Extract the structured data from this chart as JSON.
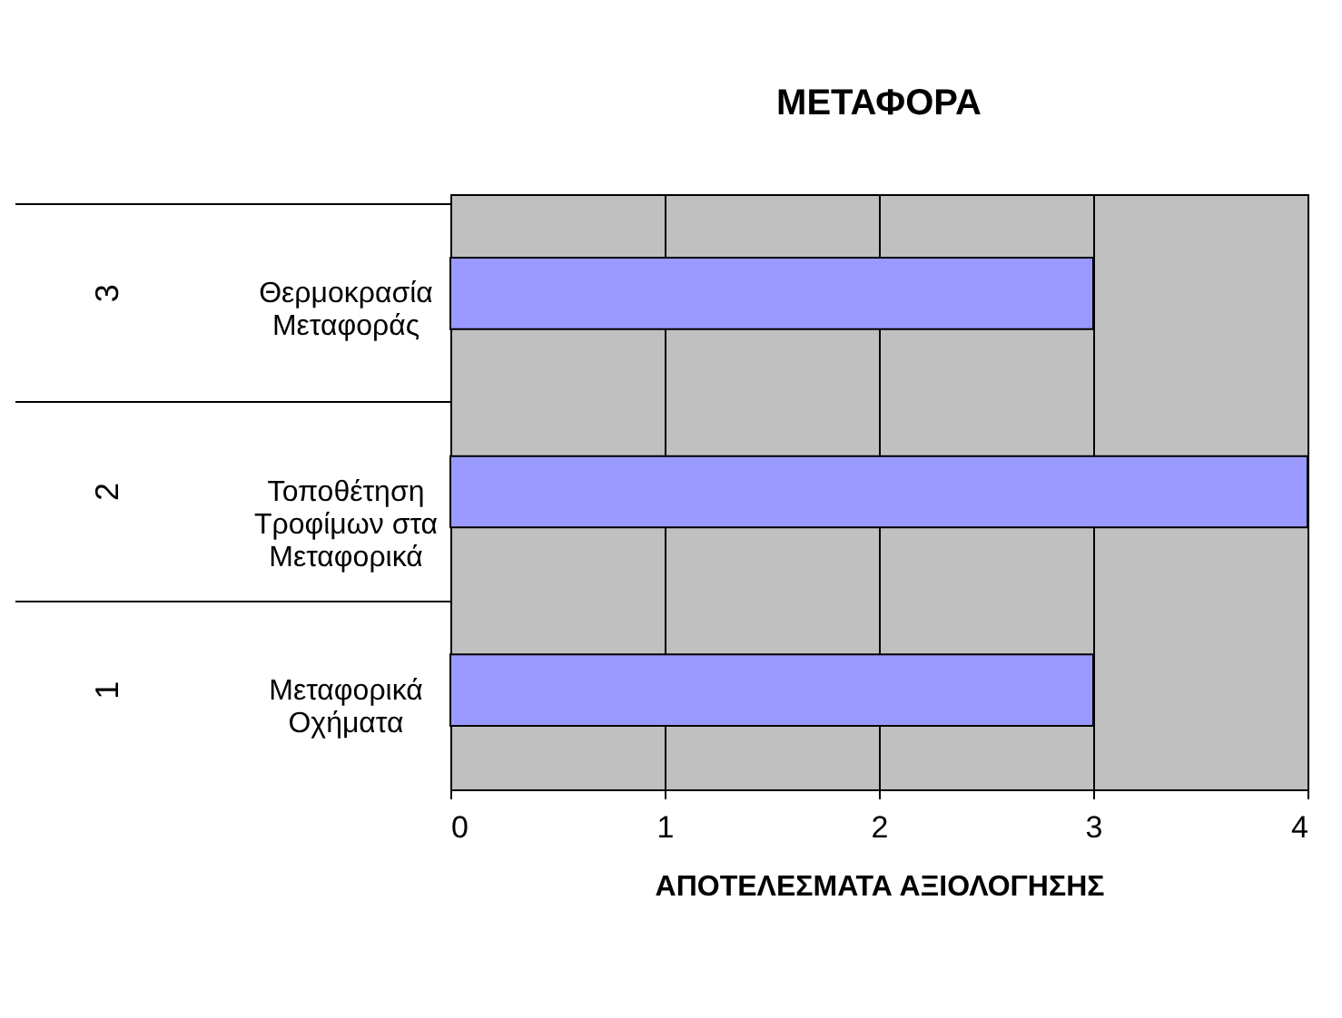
{
  "chart_data": {
    "type": "bar",
    "orientation": "horizontal",
    "title": "ΜΕΤΑΦΟΡΑ",
    "xlabel": "ΑΠΟΤΕΛΕΣΜΑΤΑ ΑΞΙΟΛΟΓΗΣΗΣ",
    "categories": [
      "Θερμοκρασία\nΜεταφοράς",
      "Τοποθέτηση\nΤροφίμων στα\nΜεταφορικά",
      "Μεταφορικά\nΟχήματα"
    ],
    "values": [
      3,
      4,
      3
    ],
    "color": "#9999ff",
    "annotations": [
      "3",
      "2",
      "1"
    ],
    "xlim": [
      0,
      4
    ],
    "xticks": [
      0,
      1,
      2,
      3,
      4
    ],
    "grid": "x"
  }
}
